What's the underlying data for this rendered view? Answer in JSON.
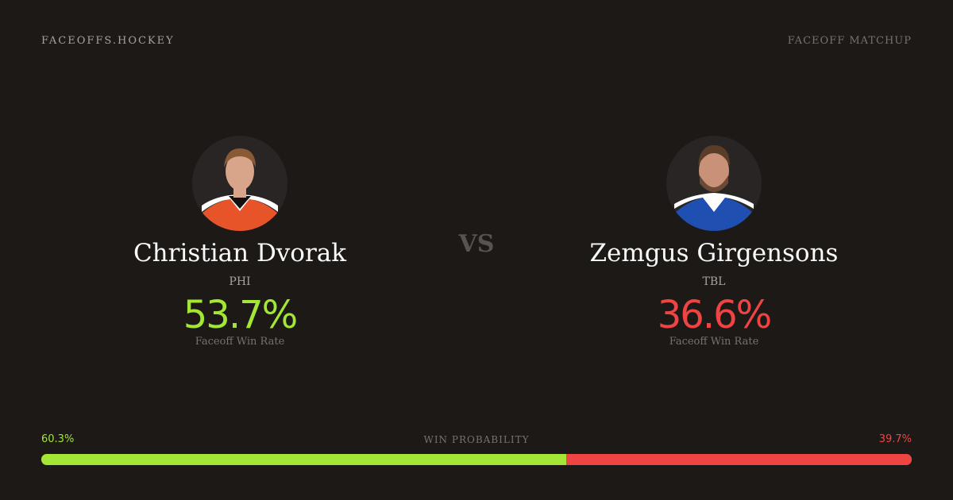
{
  "brand": "FACEOFFS.HOCKEY",
  "tag": "FACEOFF MATCHUP",
  "vs": "VS",
  "players": [
    {
      "name": "Christian Dvorak",
      "team": "PHI",
      "rate": "53.7%",
      "rate_label": "Faceoff Win Rate",
      "color": "#a3e635",
      "jersey": "#e8542a",
      "photo": "player-photo"
    },
    {
      "name": "Zemgus Girgensons",
      "team": "TBL",
      "rate": "36.6%",
      "rate_label": "Faceoff Win Rate",
      "color": "#ef4444",
      "jersey": "#1f4fb0",
      "photo": "player-photo"
    }
  ],
  "win_probability": {
    "label": "WIN PROBABILITY",
    "left": "60.3%",
    "right": "39.7%",
    "left_value": 60.3,
    "right_value": 39.7,
    "left_color": "#a3e635",
    "right_color": "#ef4444"
  }
}
